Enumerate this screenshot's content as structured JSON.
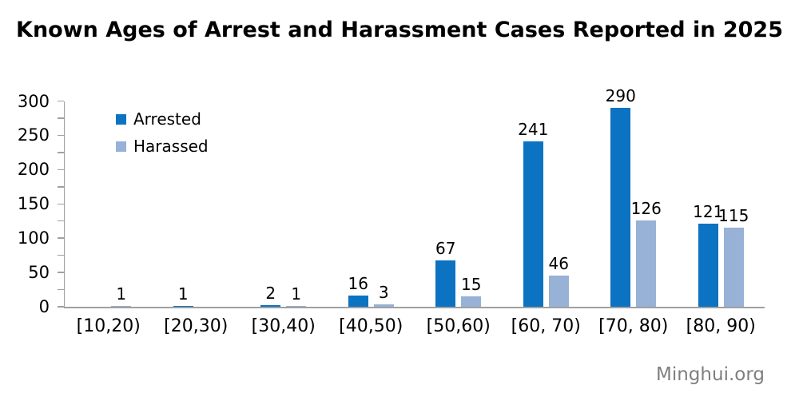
{
  "title": "Known Ages of Arrest and Harassment Cases Reported in 2025",
  "watermark": "Minghui.org",
  "colors": {
    "arrested": "#0c72c2",
    "harassed": "#97b1d7",
    "axis": "#a0a0a0",
    "text": "#000000",
    "watermark": "#7f7f7f"
  },
  "chart_data": {
    "type": "bar",
    "title": "Known Ages of Arrest and Harassment Cases Reported in 2025",
    "categories": [
      "[10,20)",
      "[20,30)",
      "[30,40)",
      "[40,50)",
      "[50,60)",
      "[60, 70)",
      "[70, 80)",
      "[80, 90)"
    ],
    "series": [
      {
        "name": "Arrested",
        "color": "#0c72c2",
        "values": [
          null,
          1,
          2,
          16,
          67,
          241,
          290,
          121
        ]
      },
      {
        "name": "Harassed",
        "color": "#97b1d7",
        "values": [
          1,
          null,
          1,
          3,
          15,
          46,
          126,
          115
        ]
      }
    ],
    "xlabel": "",
    "ylabel": "",
    "ylim": [
      0,
      300
    ],
    "y_major_ticks": [
      0,
      50,
      100,
      150,
      200,
      250,
      300
    ],
    "y_minor_step": 25,
    "grid": false,
    "data_labels": true,
    "legend_position": "top-left-inside"
  }
}
